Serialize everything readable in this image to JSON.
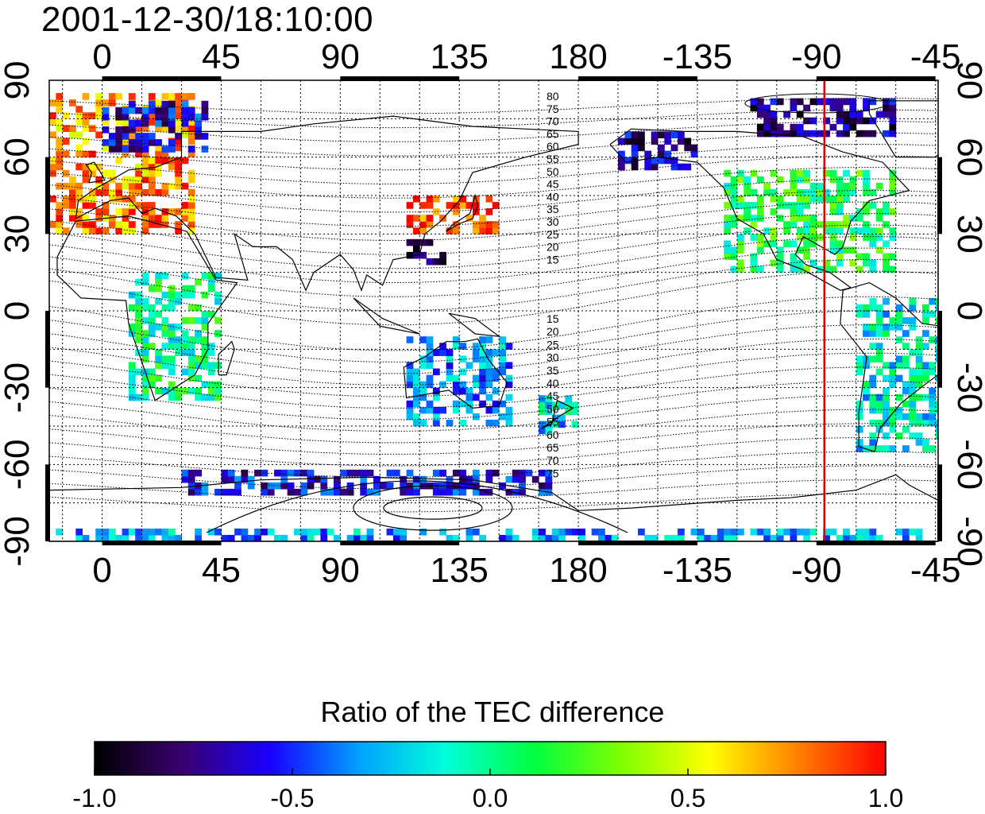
{
  "title": "2001-12-30/18:10:00",
  "map": {
    "projection": "equirectangular",
    "lon_range_east": [
      -20,
      316
    ],
    "lat_range": [
      -90,
      90
    ],
    "x_ticks": [
      {
        "lon": 0,
        "label": "0"
      },
      {
        "lon": 45,
        "label": "45"
      },
      {
        "lon": 90,
        "label": "90"
      },
      {
        "lon": 135,
        "label": "135"
      },
      {
        "lon": 180,
        "label": "180"
      },
      {
        "lon": 225,
        "label": "-135"
      },
      {
        "lon": 270,
        "label": "-90"
      },
      {
        "lon": 315,
        "label": "-45"
      }
    ],
    "y_ticks": [
      {
        "lat": 90,
        "label": "90"
      },
      {
        "lat": 60,
        "label": "60"
      },
      {
        "lat": 30,
        "label": "30"
      },
      {
        "lat": 0,
        "label": "0"
      },
      {
        "lat": -30,
        "label": "-30"
      },
      {
        "lat": -60,
        "label": "-60"
      },
      {
        "lat": -90,
        "label": "-90"
      }
    ],
    "grid": true,
    "marker_longitude": 273,
    "marker_color": "#e00000",
    "contour_labels_north": [
      "80",
      "75",
      "70",
      "65",
      "60",
      "55",
      "50",
      "45",
      "40",
      "35",
      "30",
      "25",
      "20",
      "15"
    ],
    "contour_labels_south": [
      "15",
      "20",
      "25",
      "30",
      "35",
      "40",
      "45",
      "50",
      "55",
      "60",
      "65",
      "70",
      "75"
    ]
  },
  "colorbar": {
    "title": "Ratio of the TEC difference",
    "min": -1.0,
    "max": 1.0,
    "ticks": [
      "-1.0",
      "-0.5",
      "0.0",
      "0.5",
      "1.0"
    ],
    "colormap": [
      "#000000",
      "#3a0070",
      "#1800ff",
      "#00a0ff",
      "#00ffd8",
      "#00ff40",
      "#80ff00",
      "#ffff00",
      "#ff8000",
      "#ff0000"
    ]
  },
  "data_regions": [
    {
      "region": "Europe",
      "lon": [
        -20,
        35
      ],
      "lat": [
        30,
        85
      ],
      "value": 0.75
    },
    {
      "region": "Scandinavia / N Russia",
      "lon": [
        0,
        40
      ],
      "lat": [
        62,
        80
      ],
      "value": -0.6
    },
    {
      "region": "East China / Korea / Japan",
      "lon": [
        115,
        150
      ],
      "lat": [
        30,
        45
      ],
      "value": 0.9
    },
    {
      "region": "Taiwan / S China",
      "lon": [
        115,
        130
      ],
      "lat": [
        18,
        28
      ],
      "value": -0.85
    },
    {
      "region": "Alaska",
      "lon": [
        195,
        225
      ],
      "lat": [
        55,
        70
      ],
      "value": -0.7
    },
    {
      "region": "North America",
      "lon": [
        235,
        300
      ],
      "lat": [
        15,
        55
      ],
      "value": 0.1
    },
    {
      "region": "Canadian Arctic",
      "lon": [
        245,
        300
      ],
      "lat": [
        68,
        82
      ],
      "value": -0.75
    },
    {
      "region": "South America",
      "lon": [
        285,
        320
      ],
      "lat": [
        -55,
        5
      ],
      "value": -0.15
    },
    {
      "region": "Australia",
      "lon": [
        115,
        155
      ],
      "lat": [
        -45,
        -10
      ],
      "value": -0.35
    },
    {
      "region": "New Zealand",
      "lon": [
        165,
        180
      ],
      "lat": [
        -48,
        -34
      ],
      "value": -0.2
    },
    {
      "region": "Africa",
      "lon": [
        10,
        45
      ],
      "lat": [
        -35,
        15
      ],
      "value": 0.0
    },
    {
      "region": "Antarctic coast",
      "lon": [
        30,
        170
      ],
      "lat": [
        -72,
        -63
      ],
      "value": -0.6
    },
    {
      "region": "Antarctica south edge",
      "lon": [
        -20,
        310
      ],
      "lat": [
        -90,
        -86
      ],
      "value": -0.3
    }
  ]
}
